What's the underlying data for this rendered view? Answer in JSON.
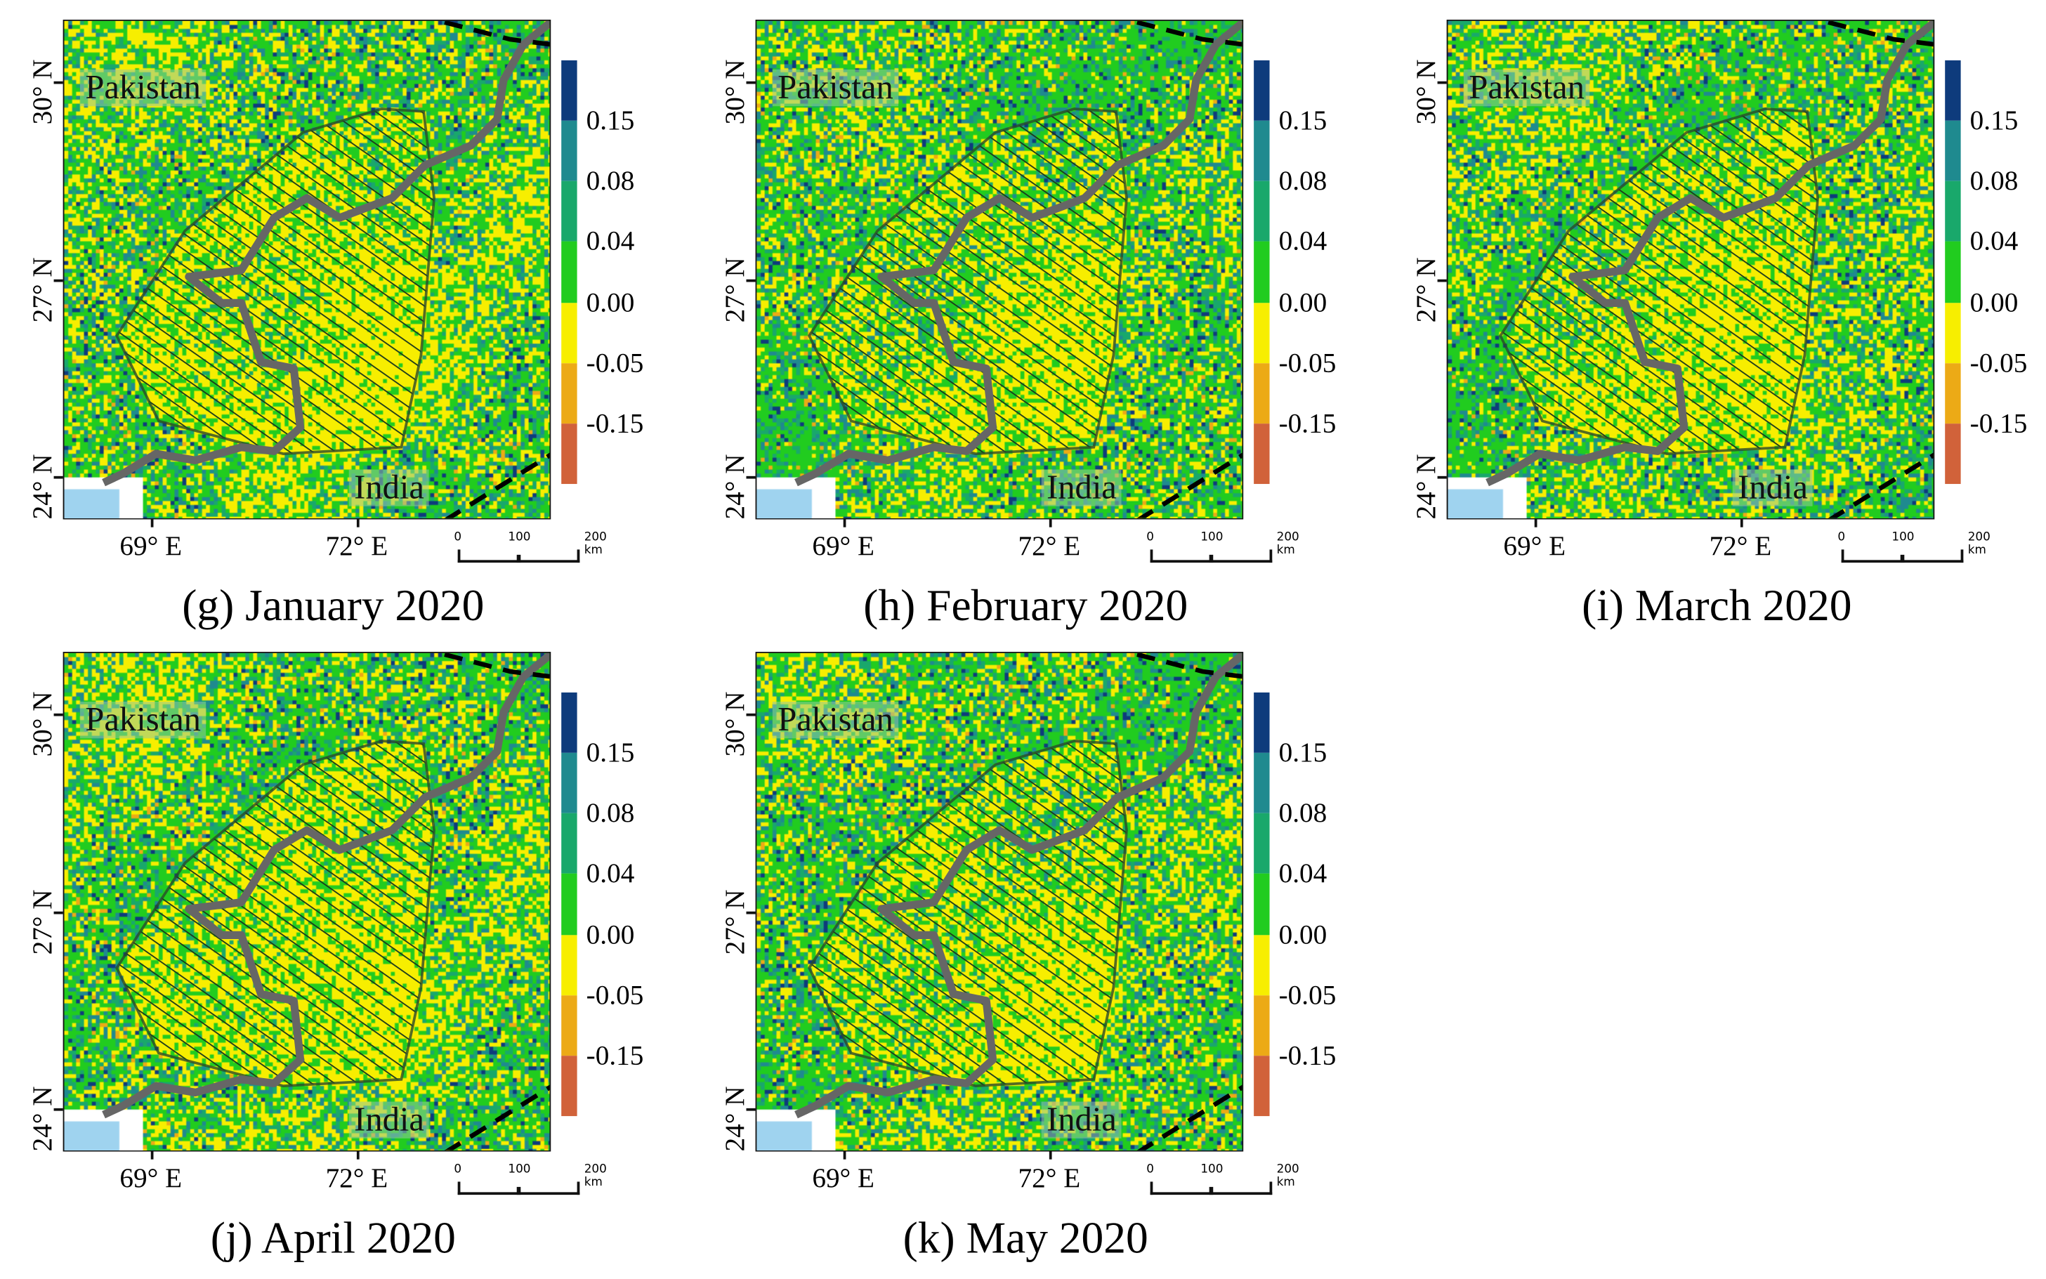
{
  "legend": {
    "colors": [
      "#0e3b7c",
      "#1f8a8f",
      "#19a86b",
      "#21cc1f",
      "#f7ee00",
      "#ecaa16",
      "#d1623a"
    ],
    "labels": [
      "0.15",
      "0.08",
      "0.04",
      "0.00",
      "-0.05",
      "-0.15"
    ]
  },
  "axes": {
    "lat_ticks": [
      "30° N",
      "27° N",
      "24° N"
    ],
    "lon_ticks": [
      "69° E",
      "72° E"
    ]
  },
  "country_labels": {
    "north": "Pakistan",
    "south": "India"
  },
  "scale_bar": {
    "labels": [
      "0",
      "100",
      "200 km"
    ]
  },
  "panels": [
    {
      "caption": "(g) January 2020",
      "yellow_share": 0.3
    },
    {
      "caption": "(h) February 2020",
      "yellow_share": 0.22
    },
    {
      "caption": "(i) March 2020",
      "yellow_share": 0.26
    },
    {
      "caption": "(j) April 2020",
      "yellow_share": 0.28
    },
    {
      "caption": "(k) May 2020",
      "yellow_share": 0.24
    }
  ]
}
